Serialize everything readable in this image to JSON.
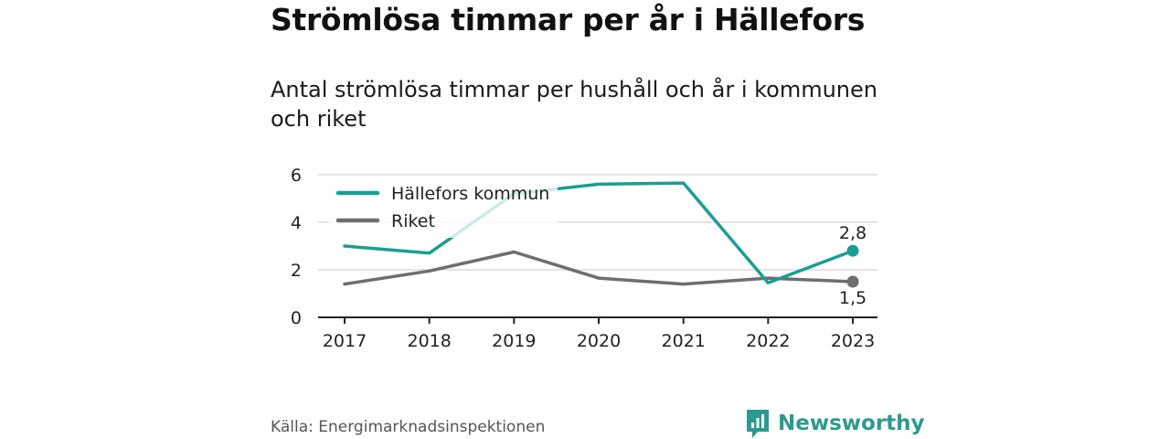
{
  "title": "Strömlösa timmar per år i Hällefors",
  "subtitle": "Antal strömlösa timmar per hushåll och år i kommunen och riket",
  "source": "Källa: Energimarknadsinspektionen",
  "brand": "Newsworthy",
  "colors": {
    "accent": "#1a9e93",
    "grey": "#6e6d72",
    "brand": "#2c9a8e"
  },
  "chart_data": {
    "type": "line",
    "x": [
      "2017",
      "2018",
      "2019",
      "2020",
      "2021",
      "2022",
      "2023"
    ],
    "ylim": [
      0,
      6
    ],
    "yticks": [
      0,
      2,
      4,
      6
    ],
    "grid": true,
    "legend": "top-left",
    "series": [
      {
        "name": "Hällefors kommun",
        "color": "#1a9e93",
        "values": [
          3.0,
          2.7,
          5.2,
          5.6,
          5.65,
          1.45,
          2.8
        ],
        "end_label": "2,8"
      },
      {
        "name": "Riket",
        "color": "#6e6d72",
        "values": [
          1.4,
          1.95,
          2.75,
          1.65,
          1.4,
          1.65,
          1.5
        ],
        "end_label": "1,5"
      }
    ]
  }
}
